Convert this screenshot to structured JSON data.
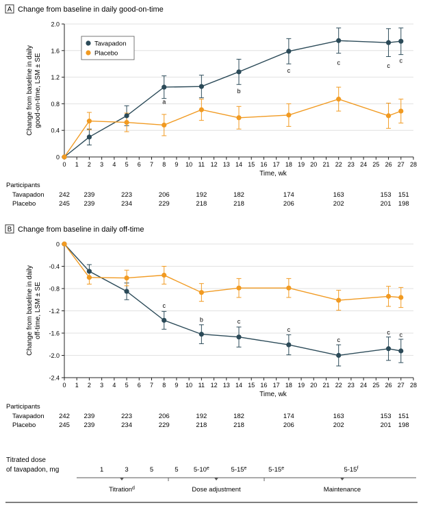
{
  "colors": {
    "tavapadon": "#2b4a58",
    "placebo": "#f19a21",
    "axis": "#222222",
    "grid": "#d9d9d9",
    "panel_box": "#333333"
  },
  "x_axis": {
    "label": "Time, wk",
    "ticks": [
      "0",
      "1",
      "2",
      "3",
      "4",
      "5",
      "6",
      "7",
      "8",
      "9",
      "10",
      "11",
      "12",
      "13",
      "14",
      "15",
      "16",
      "17",
      "18",
      "19",
      "20",
      "21",
      "22",
      "23",
      "24",
      "25",
      "26",
      "27",
      "28"
    ]
  },
  "participants": {
    "heading": "Participants",
    "rows": [
      "Tavapadon",
      "Placebo"
    ]
  },
  "chart_data": [
    {
      "type": "line",
      "panel_letter": "A",
      "title": "Change from baseline in daily good-on-time",
      "xlabel": "Time, wk",
      "ylabel": "Change from baseline in daily good-on-time, LSM ± SE",
      "ylabel_lines": [
        "Change from baseline in daily",
        "good-on-time, LSM ± SE"
      ],
      "xlim": [
        0,
        28
      ],
      "ylim": [
        0,
        2.0
      ],
      "yticks": [
        "0",
        "0.4",
        "0.8",
        "1.2",
        "1.6",
        "2.0"
      ],
      "legend": {
        "placement": "top-left",
        "entries": [
          "Tavapadon",
          "Placebo"
        ]
      },
      "series": [
        {
          "name": "Tavapadon",
          "color": "#2b4a58",
          "x": [
            0,
            2,
            5,
            8,
            11,
            14,
            18,
            22,
            26,
            27
          ],
          "y": [
            0,
            0.3,
            0.62,
            1.05,
            1.06,
            1.28,
            1.59,
            1.75,
            1.72,
            1.74
          ],
          "err": [
            0,
            0.12,
            0.15,
            0.17,
            0.17,
            0.19,
            0.19,
            0.19,
            0.21,
            0.2
          ]
        },
        {
          "name": "Placebo",
          "color": "#f19a21",
          "x": [
            0,
            2,
            5,
            8,
            11,
            14,
            18,
            22,
            26,
            27
          ],
          "y": [
            0,
            0.54,
            0.52,
            0.48,
            0.71,
            0.59,
            0.63,
            0.87,
            0.62,
            0.69
          ],
          "err": [
            0,
            0.13,
            0.14,
            0.16,
            0.16,
            0.17,
            0.17,
            0.18,
            0.19,
            0.18
          ]
        }
      ],
      "annotations": [
        {
          "text": "a",
          "x": 8,
          "y": 0.83
        },
        {
          "text": "b",
          "x": 14,
          "y": 0.99
        },
        {
          "text": "c",
          "x": 18,
          "y": 1.3
        },
        {
          "text": "c",
          "x": 22,
          "y": 1.42
        },
        {
          "text": "c",
          "x": 26,
          "y": 1.37
        },
        {
          "text": "c",
          "x": 27,
          "y": 1.45
        }
      ],
      "participants": {
        "weeks": [
          0,
          2,
          5,
          8,
          11,
          14,
          18,
          22,
          26,
          27
        ],
        "tavapadon": [
          "242",
          "239",
          "223",
          "206",
          "192",
          "182",
          "174",
          "163",
          "153",
          "151"
        ],
        "placebo": [
          "245",
          "239",
          "234",
          "229",
          "218",
          "218",
          "206",
          "202",
          "201",
          "198"
        ]
      }
    },
    {
      "type": "line",
      "panel_letter": "B",
      "title": "Change from baseline in daily off-time",
      "xlabel": "Time, wk",
      "ylabel": "Change from baseline in daily off-time, LSM ± SE",
      "ylabel_lines": [
        "Change from baseline in daily",
        "off-time, LSM ± SE"
      ],
      "xlim": [
        0,
        28
      ],
      "ylim": [
        -2.4,
        0
      ],
      "yticks": [
        "0",
        "-0.4",
        "-0.8",
        "-1.2",
        "-1.6",
        "-2.0",
        "-2.4"
      ],
      "series": [
        {
          "name": "Tavapadon",
          "color": "#2b4a58",
          "x": [
            0,
            2,
            5,
            8,
            11,
            14,
            18,
            22,
            26,
            27
          ],
          "y": [
            0,
            -0.49,
            -0.85,
            -1.37,
            -1.62,
            -1.67,
            -1.81,
            -2.0,
            -1.88,
            -1.92
          ],
          "err": [
            0,
            0.12,
            0.15,
            0.16,
            0.17,
            0.18,
            0.18,
            0.19,
            0.21,
            0.21
          ]
        },
        {
          "name": "Placebo",
          "color": "#f19a21",
          "x": [
            0,
            2,
            5,
            8,
            11,
            14,
            18,
            22,
            26,
            27
          ],
          "y": [
            0,
            -0.6,
            -0.61,
            -0.56,
            -0.87,
            -0.79,
            -0.79,
            -1.01,
            -0.94,
            -0.96
          ],
          "err": [
            0,
            0.12,
            0.14,
            0.16,
            0.16,
            0.17,
            0.17,
            0.18,
            0.18,
            0.18
          ]
        }
      ],
      "annotations": [
        {
          "text": "c",
          "x": 8,
          "y": -1.11
        },
        {
          "text": "b",
          "x": 11,
          "y": -1.36
        },
        {
          "text": "c",
          "x": 14,
          "y": -1.39
        },
        {
          "text": "c",
          "x": 18,
          "y": -1.54
        },
        {
          "text": "c",
          "x": 22,
          "y": -1.72
        },
        {
          "text": "c",
          "x": 26,
          "y": -1.59
        },
        {
          "text": "c",
          "x": 27,
          "y": -1.63
        }
      ],
      "participants": {
        "weeks": [
          0,
          2,
          5,
          8,
          11,
          14,
          18,
          22,
          26,
          27
        ],
        "tavapadon": [
          "242",
          "239",
          "223",
          "206",
          "192",
          "182",
          "174",
          "163",
          "153",
          "151"
        ],
        "placebo": [
          "245",
          "239",
          "234",
          "229",
          "218",
          "218",
          "206",
          "202",
          "201",
          "198"
        ]
      }
    }
  ],
  "dose": {
    "label_lines": [
      "Titrated dose",
      "of tavapadon, mg"
    ],
    "items": [
      {
        "text": "1",
        "x": 3
      },
      {
        "text": "3",
        "x": 5
      },
      {
        "text": "5",
        "x": 7
      },
      {
        "text": "5",
        "x": 9
      },
      {
        "text": "5-10",
        "sup": "e",
        "x": 11
      },
      {
        "text": "5-15",
        "sup": "e",
        "x": 14
      },
      {
        "text": "5-15",
        "sup": "e",
        "x": 17
      },
      {
        "text": "5-15",
        "sup": "f",
        "x": 23
      }
    ],
    "phases": [
      {
        "text": "Titration",
        "sup": "d",
        "from": 2,
        "to": 10
      },
      {
        "text": "Dose adjustment",
        "from": 10,
        "to": 17
      },
      {
        "text": "Maintenance",
        "from": 17,
        "to": 28
      }
    ]
  }
}
